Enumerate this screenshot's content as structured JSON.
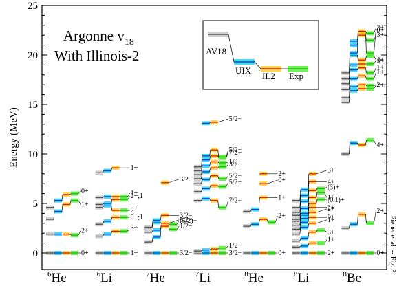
{
  "chart_data": {
    "type": "level-scheme",
    "title": {
      "line1": "Argonne v",
      "line1_sub": "18",
      "line2": "With Illinois-2"
    },
    "ylabel": "Energy (MeV)",
    "ylim": [
      0,
      25
    ],
    "yticks": [
      "0",
      "5",
      "10",
      "15",
      "20",
      "25"
    ],
    "ytick_values": [
      0,
      5,
      10,
      15,
      20,
      25
    ],
    "side_label": "Pieper et al. -- Fig. 3",
    "legend": {
      "av18": "AV18",
      "uix": "UIX",
      "il2": "IL2",
      "exp": "Exp",
      "levels": {
        "av18": 22.0,
        "uix": 20.0,
        "il2": 19.5,
        "exp": 19.5
      }
    },
    "colors": {
      "av18": "#c8c8c8",
      "uix": "#22d3f0",
      "il2": "#ffd12a",
      "exp": "#55ee33",
      "av18_line": "#555555",
      "uix_line": "#1a3fd6",
      "il2_line": "#e01818",
      "exp_line": "#22bb22",
      "uix_text": "#1a1aff",
      "il2_text": "#ee1111",
      "exp_text": "#22cc22"
    },
    "nuclei": [
      {
        "mass": "6",
        "symbol": "He",
        "levels": [
          {
            "label": "0+",
            "av18": 0.0,
            "uix": 0.0,
            "il2": 0.0,
            "exp": 0.0
          },
          {
            "label": "2+",
            "av18": 1.9,
            "uix": 1.9,
            "il2": 1.9,
            "exp": 1.8
          },
          {
            "label": "1+",
            "av18": 3.4,
            "uix": 4.2,
            "il2": 4.9,
            "exp": 5.3
          },
          {
            "label": "0+",
            "av18": 4.6,
            "uix": 5.3,
            "il2": 5.9,
            "exp": 6.0
          }
        ]
      },
      {
        "mass": "6",
        "symbol": "Li",
        "levels": [
          {
            "label": "1+",
            "av18": 0.0,
            "uix": 0.0,
            "il2": 0.0,
            "exp": 0.0
          },
          {
            "label": "3+",
            "av18": 1.7,
            "uix": 1.9,
            "il2": 2.2,
            "exp": 2.2
          },
          {
            "label": "0+;1",
            "av18": 2.9,
            "uix": 3.2,
            "il2": 3.6,
            "exp": 3.6
          },
          {
            "label": "2+;1",
            "av18": 4.6,
            "uix": 4.8,
            "il2": 5.4,
            "exp": 5.4
          },
          {
            "label": "2+",
            "av18": 4.9,
            "uix": 5.0,
            "il2": 4.3,
            "exp": 4.3
          },
          {
            "label": "1+",
            "av18": 5.6,
            "uix": 5.7,
            "il2": 5.7,
            "exp": 5.7
          },
          {
            "label": "1+",
            "av18": 8.1,
            "uix": 8.3,
            "il2": 8.6,
            "exp": null
          }
        ]
      },
      {
        "mass": "7",
        "symbol": "He",
        "levels": [
          {
            "label": "3/2−",
            "av18": 0.0,
            "uix": 0.0,
            "il2": 0.0,
            "exp": 0.0
          },
          {
            "label": "(5/2)−",
            "av18": 1.1,
            "uix": 1.6,
            "il2": 2.9,
            "exp": 2.9
          },
          {
            "label": "1/2−",
            "av18": 2.1,
            "uix": 2.3,
            "il2": 2.7,
            "exp": 2.4
          },
          {
            "label": "5/2−",
            "av18": 2.5,
            "uix": 3.1,
            "il2": 3.0,
            "exp": null
          },
          {
            "label": "3/2−",
            "av18": 2.6,
            "uix": 3.3,
            "il2": 3.8,
            "exp": null
          },
          {
            "label": "3/2−",
            "av18": null,
            "uix": null,
            "il2": 7.1,
            "exp": null
          }
        ]
      },
      {
        "mass": "7",
        "symbol": "Li",
        "levels": [
          {
            "label": "3/2−",
            "av18": 0.0,
            "uix": 0.0,
            "il2": 0.0,
            "exp": 0.0
          },
          {
            "label": "1/2−",
            "av18": 0.2,
            "uix": 0.3,
            "il2": 0.4,
            "exp": 0.5
          },
          {
            "label": "7/2−",
            "av18": 5.3,
            "uix": 5.5,
            "il2": 5.3,
            "exp": 4.6
          },
          {
            "label": "5/2−",
            "av18": 6.2,
            "uix": 6.5,
            "il2": 6.8,
            "exp": 6.7
          },
          {
            "label": "5/2−",
            "av18": 7.0,
            "uix": 7.4,
            "il2": 7.8,
            "exp": 7.5
          },
          {
            "label": "3/2−",
            "av18": 7.5,
            "uix": 8.2,
            "il2": 8.6,
            "exp": 8.7
          },
          {
            "label": "1/2−",
            "av18": 7.9,
            "uix": 8.8,
            "il2": 9.2,
            "exp": 9.1
          },
          {
            "label": "7/2−",
            "av18": 8.3,
            "uix": 9.4,
            "il2": 9.8,
            "exp": 9.6
          },
          {
            "label": "5/2−",
            "av18": 8.7,
            "uix": 9.8,
            "il2": 10.4,
            "exp": 9.7
          },
          {
            "label": "5/2−",
            "av18": null,
            "uix": 13.1,
            "il2": 13.2,
            "exp": null
          }
        ]
      },
      {
        "mass": "8",
        "symbol": "He",
        "levels": [
          {
            "label": "0+",
            "av18": 0.0,
            "uix": 0.0,
            "il2": 0.0,
            "exp": 0.0
          },
          {
            "label": "2+",
            "av18": 2.7,
            "uix": 2.9,
            "il2": 3.4,
            "exp": 3.1
          },
          {
            "label": "1+",
            "av18": 4.2,
            "uix": 4.4,
            "il2": 5.6,
            "exp": null
          },
          {
            "label": "0+",
            "av18": null,
            "uix": null,
            "il2": 7.0,
            "exp": null
          },
          {
            "label": "2+",
            "av18": null,
            "uix": null,
            "il2": 8.0,
            "exp": null
          }
        ]
      },
      {
        "mass": "8",
        "symbol": "Li",
        "levels": [
          {
            "label": "2+",
            "av18": 0.0,
            "uix": 0.0,
            "il2": 0.0,
            "exp": 0.0
          },
          {
            "label": "1+",
            "av18": 0.6,
            "uix": 0.7,
            "il2": 1.0,
            "exp": 1.0
          },
          {
            "label": "3+",
            "av18": 1.2,
            "uix": 1.5,
            "il2": 2.1,
            "exp": 2.3
          },
          {
            "label": "1+",
            "av18": 1.9,
            "uix": 2.6,
            "il2": 3.0,
            "exp": null
          },
          {
            "label": "0+",
            "av18": 2.4,
            "uix": 3.1,
            "il2": 3.6,
            "exp": null
          },
          {
            "label": "2+",
            "av18": 2.8,
            "uix": 3.5,
            "il2": 4.1,
            "exp": null
          },
          {
            "label": "2+",
            "av18": 3.2,
            "uix": 3.8,
            "il2": 4.6,
            "exp": null
          },
          {
            "label": "(0,1)+",
            "av18": 3.4,
            "uix": 4.0,
            "il2": 5.0,
            "exp": 5.4
          },
          {
            "label": "1+",
            "av18": 3.8,
            "uix": 4.5,
            "il2": 5.6,
            "exp": 6.1
          },
          {
            "label": "(3)+",
            "av18": 4.1,
            "uix": 5.2,
            "il2": 6.3,
            "exp": 6.5
          },
          {
            "label": "4+",
            "av18": 4.6,
            "uix": 5.8,
            "il2": 7.2,
            "exp": null
          },
          {
            "label": "3+",
            "av18": 5.3,
            "uix": 6.4,
            "il2": 8.0,
            "exp": null
          }
        ]
      },
      {
        "mass": "8",
        "symbol": "Be",
        "levels": [
          {
            "label": "0+",
            "av18": 0.0,
            "uix": 0.0,
            "il2": 0.0,
            "exp": 0.0
          },
          {
            "label": "2+",
            "av18": 2.5,
            "uix": 2.9,
            "il2": 3.9,
            "exp": 3.0
          },
          {
            "label": "4+",
            "av18": 10.0,
            "uix": 11.1,
            "il2": 10.9,
            "exp": 11.4
          },
          {
            "label": "2+",
            "av18": 15.2,
            "uix": 16.4,
            "il2": 16.6,
            "exp": 16.6
          },
          {
            "label": "2+",
            "av18": 15.7,
            "uix": 16.8,
            "il2": 17.0,
            "exp": 16.9
          },
          {
            "label": "1+",
            "av18": 16.5,
            "uix": 17.6,
            "il2": 17.9,
            "exp": 17.6
          },
          {
            "label": "1+",
            "av18": 17.1,
            "uix": 18.5,
            "il2": 18.7,
            "exp": 18.2
          },
          {
            "label": "3+",
            "av18": 17.6,
            "uix": 19.0,
            "il2": 19.1,
            "exp": 19.1
          },
          {
            "label": "4+",
            "av18": 18.2,
            "uix": 20.0,
            "il2": 19.5,
            "exp": 19.9
          },
          {
            "label": "0+",
            "av18": null,
            "uix": 20.2,
            "il2": 22.2,
            "exp": 20.2
          },
          {
            "label": "3+",
            "av18": null,
            "uix": 21.0,
            "il2": 22.0,
            "exp": 21.5
          },
          {
            "label": "2+",
            "av18": null,
            "uix": 21.4,
            "il2": 22.4,
            "exp": 22.2
          }
        ]
      }
    ]
  }
}
